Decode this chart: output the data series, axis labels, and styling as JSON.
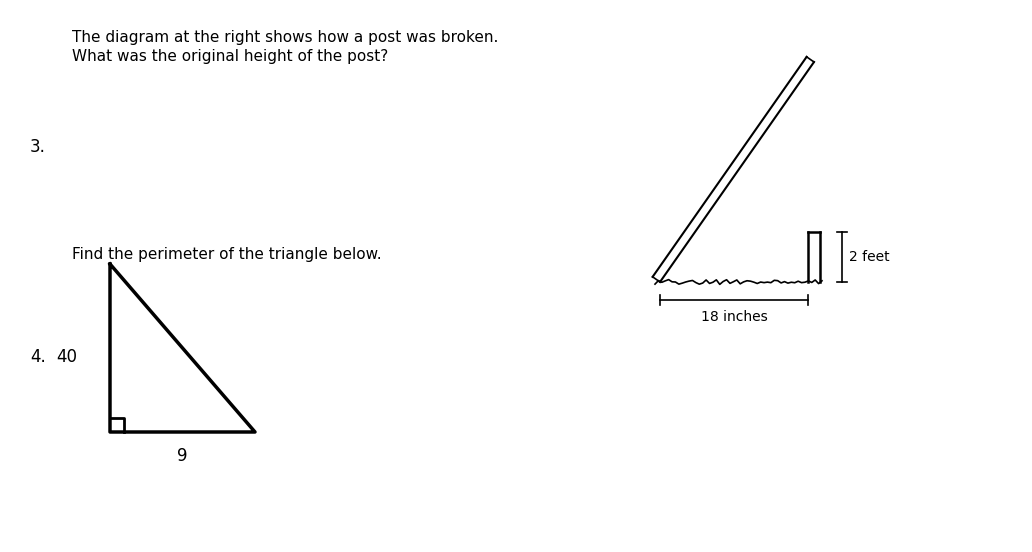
{
  "bg_color": "#ffffff",
  "label_2feet": "2 feet",
  "label_18inches": "18 inches",
  "label_9": "9",
  "label_40": "40",
  "text_line1": "The diagram at the right shows how a post was broken.",
  "text_line2": "What was the original height of the post?",
  "text_perimeter": "Find the perimeter of the triangle below.",
  "label_3": "3.",
  "label_4": "4.",
  "fontsize_body": 11,
  "fontsize_label": 12
}
